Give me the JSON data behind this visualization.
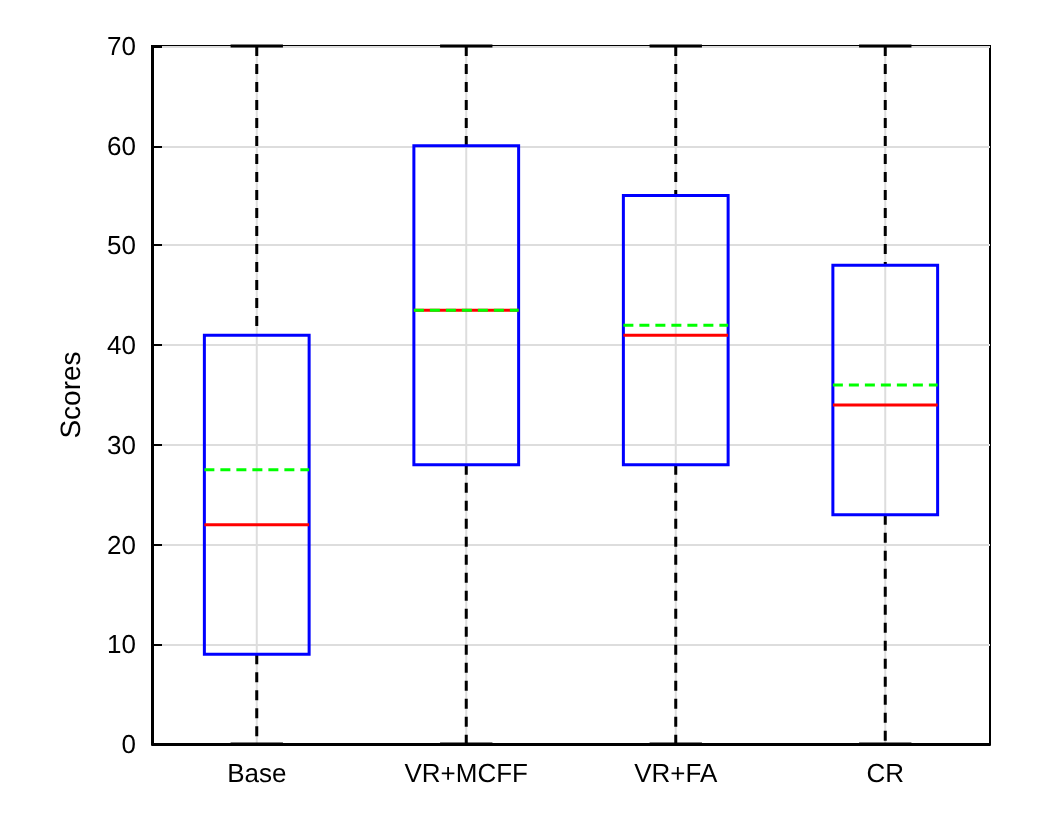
{
  "chart_data": {
    "type": "box",
    "ylabel": "Scores",
    "categories": [
      "Base",
      "VR+MCFF",
      "VR+FA",
      "CR"
    ],
    "boxes": [
      {
        "low": 0,
        "q1": 9,
        "median": 22,
        "q3": 41,
        "high": 70,
        "mean": 27.5
      },
      {
        "low": 0,
        "q1": 28,
        "median": 43.5,
        "q3": 60,
        "high": 70,
        "mean": 43.5
      },
      {
        "low": 0,
        "q1": 28,
        "median": 41,
        "q3": 55,
        "high": 70,
        "mean": 42
      },
      {
        "low": 0,
        "q1": 23,
        "median": 34,
        "q3": 48,
        "high": 70,
        "mean": 36
      }
    ],
    "color": "#0000ff",
    "ylim": [
      0,
      70
    ],
    "yticks": [
      0,
      10,
      20,
      30,
      40,
      50,
      60,
      70
    ],
    "grid": true
  }
}
